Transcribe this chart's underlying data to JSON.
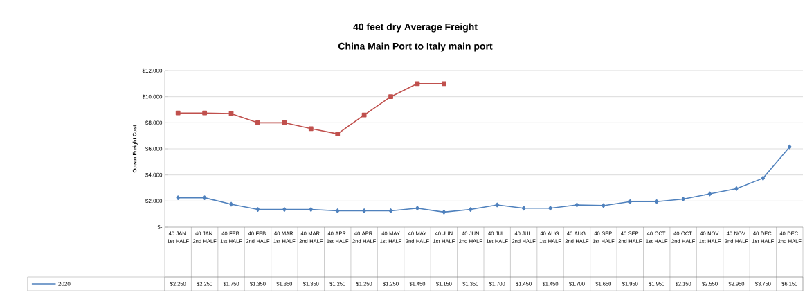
{
  "chart_data": {
    "type": "line",
    "title": "40 feet dry Average Freight",
    "subtitle": "China Main Port to Italy main port",
    "ylabel": "Ocean Freight Cost",
    "categories": [
      "40 JAN. 1st HALF",
      "40 JAN. 2nd HALF",
      "40 FEB. 1st HALF",
      "40 FEB. 2nd HALF",
      "40 MAR. 1st HALF",
      "40 MAR. 2nd HALF",
      "40 APR. 1st HALF",
      "40 APR. 2nd HALF",
      "40 MAY 1st HALF",
      "40 MAY 2nd HALF",
      "40 JUN 1st HALF",
      "40 JUN 2nd HALF",
      "40 JUL. 1st HALF",
      "40 JUL. 2nd HALF",
      "40 AUG. 1st HALF",
      "40 AUG. 2nd HALF",
      "40 SEP. 1st HALF",
      "40 SEP. 2nd HALF",
      "40 OCT. 1st HALF",
      "40 OCT. 2nd HALF",
      "40 NOV. 1st HALF",
      "40 NOV. 2nd HALF",
      "40 DEC. 1st HALF",
      "40 DEC. 2nd HALF"
    ],
    "series": [
      {
        "name": "2020",
        "color": "#4f81bd",
        "marker": "diamond",
        "values": [
          2250,
          2250,
          1750,
          1350,
          1350,
          1350,
          1250,
          1250,
          1250,
          1450,
          1150,
          1350,
          1700,
          1450,
          1450,
          1700,
          1650,
          1950,
          1950,
          2150,
          2550,
          2950,
          3750,
          6150
        ],
        "value_labels": [
          "$2.250",
          "$2.250",
          "$1.750",
          "$1.350",
          "$1.350",
          "$1.350",
          "$1.250",
          "$1.250",
          "$1.250",
          "$1.450",
          "$1.150",
          "$1.350",
          "$1.700",
          "$1.450",
          "$1.450",
          "$1.700",
          "$1.650",
          "$1.950",
          "$1.950",
          "$2.150",
          "$2.550",
          "$2.950",
          "$3.750",
          "$6.150"
        ]
      },
      {
        "color": "#c0504d",
        "marker": "square",
        "values": [
          8750,
          8750,
          8700,
          8000,
          8000,
          7550,
          7150,
          8600,
          10000,
          11000,
          11000,
          null,
          null,
          null,
          null,
          null,
          null,
          null,
          null,
          null,
          null,
          null,
          null,
          null
        ]
      }
    ],
    "ylim": [
      0,
      12000
    ],
    "yticks": [
      {
        "value": 0,
        "label": "$-"
      },
      {
        "value": 2000,
        "label": "$2.000"
      },
      {
        "value": 4000,
        "label": "$4.000"
      },
      {
        "value": 6000,
        "label": "$6.000"
      },
      {
        "value": 8000,
        "label": "$8.000"
      },
      {
        "value": 10000,
        "label": "$10.000"
      },
      {
        "value": 12000,
        "label": "$12.000"
      }
    ],
    "grid": "y",
    "legend": "bottom"
  }
}
